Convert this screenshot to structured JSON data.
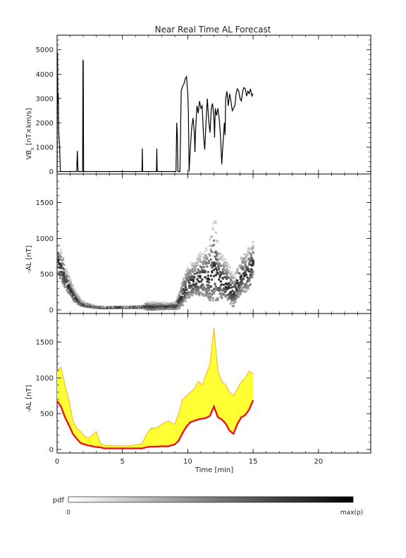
{
  "figure": {
    "title": "Near Real Time AL Forecast",
    "colorbar": {
      "label": "pdf",
      "min_label": "0",
      "max_label": "max(p)"
    },
    "colors": {
      "red": "#e8141e",
      "orange": "#f5a623",
      "yellow": "#ffff33",
      "black": "#000000"
    }
  },
  "chart_data": [
    {
      "type": "line",
      "panel": "top",
      "ylabel": "VB_s [nT×km/s]",
      "ylim": [
        -100,
        5600
      ],
      "xlim": [
        0,
        24
      ],
      "yticks": [
        0,
        1000,
        2000,
        3000,
        4000,
        5000
      ],
      "series": [
        {
          "x": [
            0.0,
            0.03,
            0.06,
            0.09,
            0.12,
            0.15,
            0.2,
            0.25,
            0.3,
            0.35,
            0.4,
            0.45,
            1.5,
            1.55,
            1.6,
            1.65,
            1.95,
            1.98,
            2.0,
            2.03,
            2.06,
            6.5,
            6.52,
            6.55,
            6.58,
            7.6,
            7.63,
            7.66,
            7.7,
            9.1,
            9.15,
            9.2,
            9.25,
            9.3,
            9.35,
            9.4,
            9.5,
            9.6,
            9.7,
            9.8,
            9.9,
            10.0,
            10.05,
            10.1,
            10.2,
            10.3,
            10.4,
            10.5,
            10.55,
            10.6,
            10.7,
            10.8,
            10.9,
            11.0,
            11.1,
            11.2,
            11.3,
            11.4,
            11.5,
            11.55,
            11.6,
            11.7,
            11.8,
            11.9,
            12.0,
            12.05,
            12.1,
            12.2,
            12.3,
            12.4,
            12.5,
            12.6,
            12.7,
            12.8,
            12.85,
            12.9,
            13.0,
            13.1,
            13.2,
            13.3,
            13.4,
            13.5,
            13.6,
            13.7,
            13.8,
            13.9,
            14.0,
            14.1,
            14.2,
            14.3,
            14.4,
            14.5,
            14.6,
            14.7,
            14.8,
            14.9,
            15.0
          ],
          "y": [
            0,
            4900,
            2800,
            3200,
            1700,
            1400,
            900,
            0,
            0,
            0,
            0,
            0,
            0,
            850,
            0,
            0,
            0,
            4600,
            4500,
            0,
            0,
            0,
            950,
            0,
            0,
            0,
            950,
            0,
            0,
            0,
            2000,
            1500,
            0,
            0,
            0,
            0,
            3300,
            3500,
            3600,
            3800,
            3900,
            3200,
            2400,
            0,
            1000,
            1800,
            2200,
            1600,
            800,
            1700,
            2700,
            2400,
            2900,
            2600,
            2700,
            1500,
            900,
            2100,
            3000,
            2500,
            2100,
            1600,
            2600,
            2800,
            2200,
            1400,
            2600,
            2300,
            2600,
            2200,
            1500,
            300,
            1200,
            2000,
            1500,
            3000,
            3300,
            2700,
            3200,
            2900,
            2500,
            2600,
            2700,
            3200,
            3400,
            3300,
            3000,
            2900,
            3300,
            3450,
            3400,
            3100,
            3300,
            3200,
            3400,
            3100,
            3200
          ]
        }
      ]
    },
    {
      "type": "heatmap",
      "panel": "middle",
      "ylabel": "-AL [nT]",
      "ylim": [
        -50,
        1900
      ],
      "xlim": [
        0,
        24
      ],
      "yticks": [
        0,
        500,
        1000,
        1500
      ],
      "description_x": [
        0,
        0.3,
        0.6,
        0.9,
        1.2,
        1.5,
        1.8,
        2.1,
        2.4,
        2.7,
        3.0,
        3.3,
        3.6,
        4.5,
        5.5,
        6.5,
        6.8,
        7.2,
        7.6,
        8.0,
        8.5,
        9.0,
        9.3,
        9.6,
        9.9,
        10.2,
        10.5,
        10.8,
        11.1,
        11.4,
        11.7,
        12.0,
        12.3,
        12.6,
        12.9,
        13.2,
        13.5,
        13.8,
        14.1,
        14.4,
        14.7,
        15.0
      ],
      "median_y": [
        650,
        560,
        400,
        300,
        200,
        130,
        80,
        60,
        50,
        40,
        30,
        30,
        25,
        30,
        30,
        35,
        40,
        35,
        40,
        40,
        40,
        45,
        120,
        230,
        330,
        380,
        400,
        430,
        440,
        450,
        470,
        600,
        430,
        400,
        350,
        260,
        220,
        380,
        460,
        480,
        550,
        700
      ],
      "spread_y": [
        420,
        360,
        260,
        220,
        160,
        110,
        70,
        50,
        40,
        30,
        20,
        20,
        20,
        20,
        20,
        30,
        90,
        100,
        90,
        80,
        70,
        90,
        210,
        360,
        380,
        400,
        380,
        500,
        520,
        600,
        800,
        1100,
        620,
        500,
        480,
        430,
        380,
        420,
        460,
        480,
        500,
        380
      ]
    },
    {
      "type": "area",
      "panel": "bottom",
      "xlabel": "Time [min]",
      "ylabel": "-AL [nT]",
      "ylim": [
        -50,
        1900
      ],
      "xlim": [
        0,
        24
      ],
      "xticks": [
        0,
        5,
        10,
        15,
        20
      ],
      "yticks": [
        0,
        500,
        1000,
        1500
      ],
      "series": [
        {
          "x": [
            0,
            0.3,
            0.6,
            0.9,
            1.2,
            1.5,
            1.8,
            2.1,
            2.4,
            2.7,
            3.0,
            3.3,
            3.6,
            4.5,
            5.5,
            6.5,
            6.8,
            7.2,
            7.6,
            8.0,
            8.5,
            9.0,
            9.3,
            9.6,
            9.9,
            10.2,
            10.5,
            10.8,
            11.1,
            11.4,
            11.7,
            12.0,
            12.3,
            12.6,
            12.9,
            13.2,
            13.5,
            13.8,
            14.1,
            14.4,
            14.7,
            15.0
          ],
          "y": [
            680,
            600,
            450,
            340,
            220,
            150,
            90,
            70,
            55,
            45,
            35,
            30,
            15,
            15,
            15,
            15,
            30,
            40,
            40,
            45,
            45,
            70,
            120,
            230,
            320,
            380,
            400,
            420,
            430,
            440,
            470,
            600,
            450,
            420,
            360,
            260,
            220,
            360,
            450,
            480,
            560,
            690
          ]
        },
        {
          "x": [
            0,
            0.3,
            0.6,
            0.9,
            1.2,
            1.5,
            1.8,
            2.1,
            2.4,
            2.7,
            3.0,
            3.3,
            3.6,
            4.5,
            5.5,
            6.5,
            6.8,
            7.2,
            7.6,
            8.0,
            8.5,
            9.0,
            9.3,
            9.6,
            9.9,
            10.2,
            10.5,
            10.8,
            11.1,
            11.4,
            11.7,
            12.0,
            12.3,
            12.6,
            12.9,
            13.2,
            13.5,
            13.8,
            14.1,
            14.4,
            14.7,
            15.0
          ],
          "y": [
            1100,
            1150,
            900,
            700,
            400,
            300,
            250,
            180,
            160,
            200,
            250,
            90,
            60,
            50,
            50,
            80,
            200,
            300,
            300,
            350,
            400,
            350,
            500,
            700,
            750,
            800,
            850,
            950,
            900,
            1050,
            1200,
            1700,
            1100,
            950,
            900,
            800,
            750,
            850,
            950,
            1000,
            1100,
            1050
          ]
        }
      ]
    }
  ]
}
